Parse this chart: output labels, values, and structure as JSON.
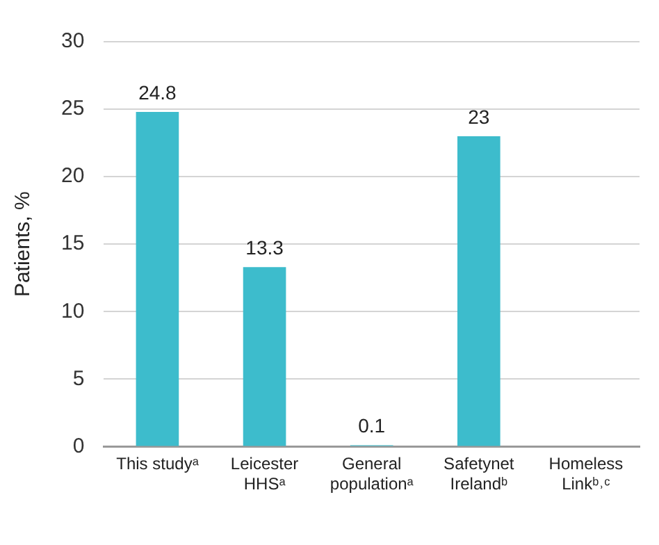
{
  "chart_data": {
    "type": "bar",
    "ylabel": "Patients, %",
    "categories": [
      "This studyᵃ",
      "Leicester HHSᵃ",
      "General populationᵃ",
      "Safetynet Irelandᵇ",
      "Homeless Linkᵇ˒ᶜ"
    ],
    "values": [
      24.8,
      13.3,
      0.1,
      23,
      null
    ],
    "color": "#3dbccc",
    "ylim": [
      0,
      30
    ],
    "yticks": [
      0,
      5,
      10,
      15,
      20,
      25,
      30
    ],
    "grid": "y",
    "data_labels": true
  }
}
